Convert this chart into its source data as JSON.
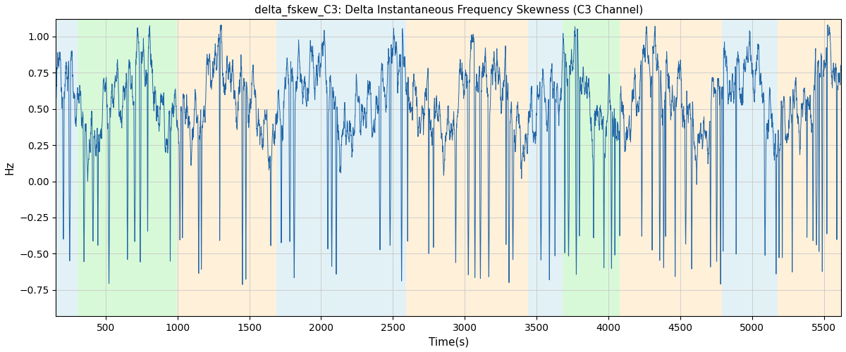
{
  "title": "delta_fskew_C3: Delta Instantaneous Frequency Skewness (C3 Channel)",
  "xlabel": "Time(s)",
  "ylabel": "Hz",
  "xlim": [
    155,
    5620
  ],
  "ylim": [
    -0.93,
    1.12
  ],
  "line_color": "#2166a8",
  "line_width": 0.7,
  "background_color": "#ffffff",
  "grid_color": "#c8c8c8",
  "xticks": [
    500,
    1000,
    1500,
    2000,
    2500,
    3000,
    3500,
    4000,
    4500,
    5000,
    5500
  ],
  "yticks": [
    -0.75,
    -0.5,
    -0.25,
    0.0,
    0.25,
    0.5,
    0.75,
    1.0
  ],
  "regions": [
    {
      "xmin": 155,
      "xmax": 305,
      "color": "#add8e6",
      "alpha": 0.35
    },
    {
      "xmin": 305,
      "xmax": 995,
      "color": "#90ee90",
      "alpha": 0.35
    },
    {
      "xmin": 995,
      "xmax": 1690,
      "color": "#ffdaa0",
      "alpha": 0.4
    },
    {
      "xmin": 1690,
      "xmax": 2590,
      "color": "#add8e6",
      "alpha": 0.35
    },
    {
      "xmin": 2590,
      "xmax": 3440,
      "color": "#ffdaa0",
      "alpha": 0.4
    },
    {
      "xmin": 3440,
      "xmax": 3680,
      "color": "#add8e6",
      "alpha": 0.35
    },
    {
      "xmin": 3680,
      "xmax": 4080,
      "color": "#90ee90",
      "alpha": 0.35
    },
    {
      "xmin": 4080,
      "xmax": 4790,
      "color": "#ffdaa0",
      "alpha": 0.4
    },
    {
      "xmin": 4790,
      "xmax": 5180,
      "color": "#add8e6",
      "alpha": 0.35
    },
    {
      "xmin": 5180,
      "xmax": 5620,
      "color": "#ffdaa0",
      "alpha": 0.4
    }
  ],
  "seed": 1234,
  "n_points": 5600,
  "spike_density": 0.018,
  "base_level": 0.58,
  "base_amp": 0.22,
  "spike_depth_min": -0.45,
  "spike_depth_max": -0.82
}
